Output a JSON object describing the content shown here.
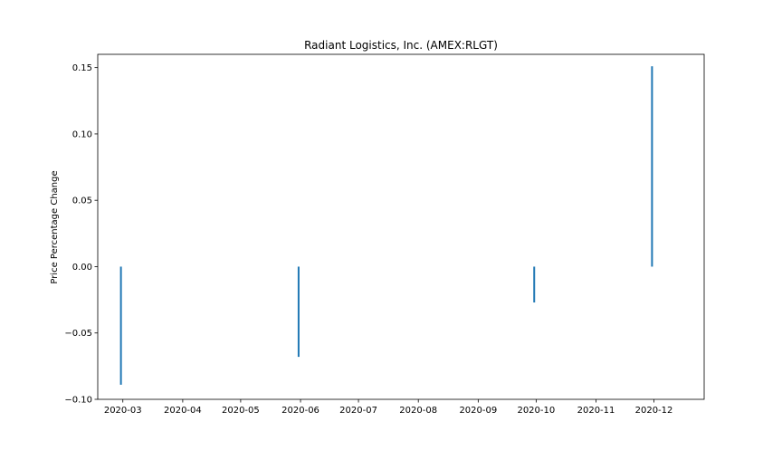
{
  "chart_data": {
    "type": "bar",
    "title": "Radiant Logistics, Inc. (AMEX:RLGT)",
    "xlabel": "",
    "ylabel": "Price Percentage Change",
    "x_axis_type": "date",
    "xlim": [
      "2020-02-17",
      "2020-12-27"
    ],
    "ylim": [
      -0.1,
      0.16
    ],
    "x_ticks": [
      "2020-03",
      "2020-04",
      "2020-05",
      "2020-06",
      "2020-07",
      "2020-08",
      "2020-09",
      "2020-10",
      "2020-11",
      "2020-12"
    ],
    "y_ticks": [
      -0.1,
      -0.05,
      0.0,
      0.05,
      0.1,
      0.15
    ],
    "y_tick_labels": [
      "−0.10",
      "−0.05",
      "0.00",
      "0.05",
      "0.10",
      "0.15"
    ],
    "grid": false,
    "series": [
      {
        "color": "#1f77b4",
        "points": [
          {
            "x": "2020-02-29",
            "y": -0.089
          },
          {
            "x": "2020-05-31",
            "y": -0.068
          },
          {
            "x": "2020-09-30",
            "y": -0.027
          },
          {
            "x": "2020-11-30",
            "y": 0.151
          }
        ]
      }
    ]
  }
}
